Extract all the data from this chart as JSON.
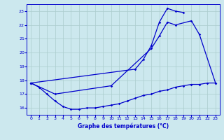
{
  "xlabel": "Graphe des températures (°C)",
  "hours": [
    0,
    1,
    2,
    3,
    4,
    5,
    6,
    7,
    8,
    9,
    10,
    11,
    12,
    13,
    14,
    15,
    16,
    17,
    18,
    19,
    20,
    21,
    22,
    23
  ],
  "line1": [
    17.8,
    17.5,
    17.0,
    16.5,
    16.1,
    15.9,
    15.9,
    16.0,
    16.0,
    16.1,
    16.2,
    16.3,
    16.5,
    16.7,
    16.9,
    17.0,
    17.2,
    17.3,
    17.5,
    17.6,
    17.7,
    17.7,
    17.8,
    17.8
  ],
  "line2_hours": [
    0,
    3,
    10,
    15,
    16,
    17,
    18,
    20,
    21,
    23
  ],
  "line2_vals": [
    17.8,
    17.0,
    17.6,
    20.3,
    21.2,
    22.2,
    22.0,
    22.3,
    21.3,
    17.8
  ],
  "line3_hours": [
    0,
    13,
    14,
    15,
    16,
    17,
    18,
    19
  ],
  "line3_vals": [
    17.8,
    18.8,
    19.5,
    20.5,
    22.2,
    23.2,
    23.0,
    22.9
  ],
  "ylim": [
    15.5,
    23.5
  ],
  "xlim": [
    -0.5,
    23.5
  ],
  "yticks": [
    16,
    17,
    18,
    19,
    20,
    21,
    22,
    23
  ],
  "xticks": [
    0,
    1,
    2,
    3,
    4,
    5,
    6,
    7,
    8,
    9,
    10,
    11,
    12,
    13,
    14,
    15,
    16,
    17,
    18,
    19,
    20,
    21,
    22,
    23
  ],
  "line_color": "#0000cc",
  "bg_color": "#cce8ee",
  "grid_color": "#aacccc",
  "marker": "D",
  "marker_size": 1.8,
  "linewidth": 0.9
}
